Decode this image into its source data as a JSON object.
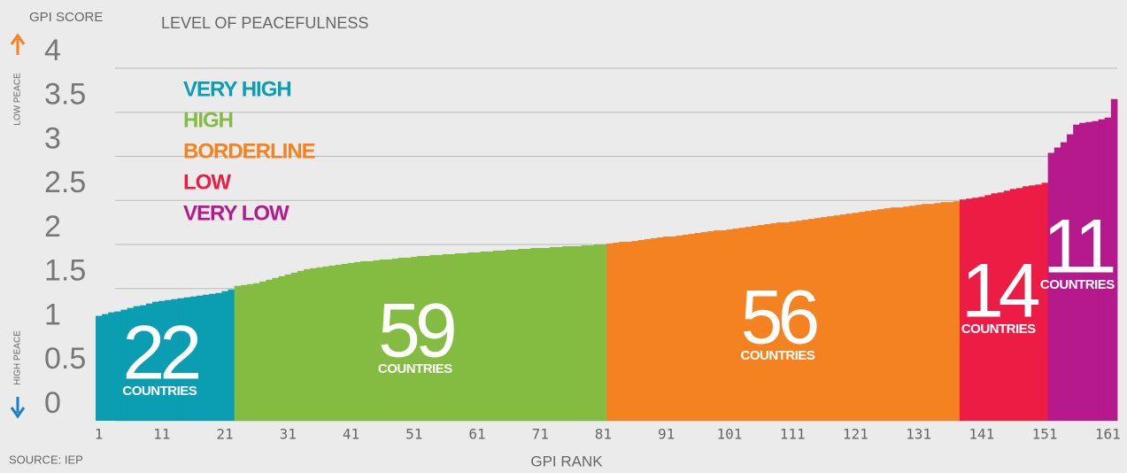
{
  "chart_data": {
    "type": "bar",
    "y_label": "GPI SCORE",
    "legend_title": "LEVEL OF PEACEFULNESS",
    "x_label": "GPI RANK",
    "source": "SOURCE: IEP",
    "top_annotation": "LOW PEACE",
    "bottom_annotation": "HIGH PEACE",
    "count_label": "COUNTRIES",
    "xlim": [
      0.5,
      162.5
    ],
    "xticks": [
      1,
      11,
      21,
      31,
      41,
      51,
      61,
      71,
      81,
      91,
      101,
      111,
      121,
      131,
      141,
      151,
      161
    ],
    "ylim": [
      0,
      4
    ],
    "yticks": [
      0,
      0.5,
      1,
      1.5,
      2,
      2.5,
      3,
      3.5,
      4
    ],
    "grid": true,
    "series": [
      {
        "name": "VERY HIGH",
        "color": "#0b9db1",
        "count": 22,
        "values": [
          1.19,
          1.21,
          1.23,
          1.24,
          1.26,
          1.28,
          1.3,
          1.31,
          1.33,
          1.35,
          1.36,
          1.37,
          1.38,
          1.39,
          1.4,
          1.41,
          1.42,
          1.43,
          1.44,
          1.45,
          1.47,
          1.49
        ]
      },
      {
        "name": "HIGH",
        "color": "#84bb41",
        "count": 59,
        "values": [
          1.53,
          1.54,
          1.55,
          1.56,
          1.58,
          1.6,
          1.62,
          1.64,
          1.66,
          1.68,
          1.7,
          1.72,
          1.73,
          1.74,
          1.75,
          1.76,
          1.77,
          1.78,
          1.79,
          1.8,
          1.81,
          1.81,
          1.82,
          1.83,
          1.83,
          1.84,
          1.85,
          1.85,
          1.86,
          1.87,
          1.87,
          1.88,
          1.88,
          1.89,
          1.89,
          1.9,
          1.9,
          1.91,
          1.91,
          1.92,
          1.92,
          1.93,
          1.93,
          1.94,
          1.94,
          1.95,
          1.95,
          1.96,
          1.96,
          1.96,
          1.97,
          1.97,
          1.98,
          1.98,
          1.98,
          1.99,
          1.99,
          2.0,
          2.0
        ]
      },
      {
        "name": "BORDERLINE",
        "color": "#f58220",
        "count": 56,
        "values": [
          2.01,
          2.02,
          2.03,
          2.03,
          2.04,
          2.05,
          2.06,
          2.07,
          2.08,
          2.09,
          2.09,
          2.1,
          2.11,
          2.12,
          2.13,
          2.14,
          2.15,
          2.16,
          2.16,
          2.17,
          2.18,
          2.19,
          2.2,
          2.21,
          2.22,
          2.23,
          2.24,
          2.25,
          2.25,
          2.26,
          2.27,
          2.28,
          2.29,
          2.3,
          2.31,
          2.32,
          2.33,
          2.34,
          2.35,
          2.36,
          2.37,
          2.38,
          2.39,
          2.4,
          2.41,
          2.42,
          2.42,
          2.43,
          2.44,
          2.45,
          2.46,
          2.46,
          2.47,
          2.48,
          2.48,
          2.49
        ]
      },
      {
        "name": "LOW",
        "color": "#ed1c45",
        "count": 14,
        "values": [
          2.51,
          2.52,
          2.53,
          2.54,
          2.56,
          2.58,
          2.59,
          2.61,
          2.63,
          2.64,
          2.66,
          2.67,
          2.68,
          2.7
        ]
      },
      {
        "name": "VERY LOW",
        "color": "#b5198b",
        "count": 11,
        "values": [
          3.04,
          3.1,
          3.16,
          3.25,
          3.36,
          3.38,
          3.39,
          3.4,
          3.42,
          3.44,
          3.65
        ]
      }
    ]
  }
}
